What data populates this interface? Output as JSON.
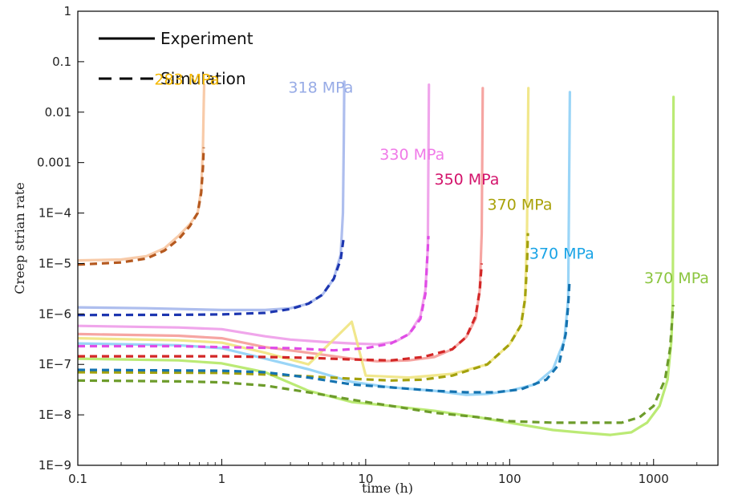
{
  "chart_data": {
    "type": "line",
    "title": "",
    "xlabel": "time (h)",
    "ylabel": "Creep strian rate",
    "xscale": "log",
    "yscale": "log",
    "xlim": [
      0.1,
      2800
    ],
    "ylim": [
      1e-09,
      1
    ],
    "grid": false,
    "legend_position": "top-left",
    "x_ticks": [
      {
        "value": 0.1,
        "label": "0.1"
      },
      {
        "value": 1,
        "label": "1"
      },
      {
        "value": 10,
        "label": "10"
      },
      {
        "value": 100,
        "label": "100"
      },
      {
        "value": 1000,
        "label": "1000"
      }
    ],
    "y_ticks": [
      {
        "value": 1,
        "label": "1"
      },
      {
        "value": 0.1,
        "label": "0.1"
      },
      {
        "value": 0.01,
        "label": "0.01"
      },
      {
        "value": 0.001,
        "label": "0.001"
      },
      {
        "value": 0.0001,
        "label": "1E−4"
      },
      {
        "value": 1e-05,
        "label": "1E−5"
      },
      {
        "value": 1e-06,
        "label": "1E−6"
      },
      {
        "value": 1e-07,
        "label": "1E−7"
      },
      {
        "value": 1e-08,
        "label": "1E−8"
      },
      {
        "value": 1e-09,
        "label": "1E−9"
      }
    ],
    "legend": [
      {
        "label": "Experiment",
        "style": "solid"
      },
      {
        "label": "Simulation",
        "style": "dashed"
      }
    ],
    "series": [
      {
        "label": "283 MPa",
        "exp_color": "#f7c5a0",
        "sim_color": "#b5591f",
        "label_color": "#f5b800",
        "label_at": [
          0.34,
          0.035
        ],
        "experiment": [
          [
            0.1,
            1.15e-05
          ],
          [
            0.2,
            1.2e-05
          ],
          [
            0.3,
            1.4e-05
          ],
          [
            0.4,
            2e-05
          ],
          [
            0.5,
            3.5e-05
          ],
          [
            0.6,
            6e-05
          ],
          [
            0.68,
            0.0001
          ],
          [
            0.72,
            0.0003
          ],
          [
            0.74,
            0.002
          ],
          [
            0.75,
            0.015
          ],
          [
            0.755,
            0.035
          ]
        ],
        "simulation": [
          [
            0.1,
            9.5e-06
          ],
          [
            0.2,
            1.05e-05
          ],
          [
            0.3,
            1.25e-05
          ],
          [
            0.4,
            1.8e-05
          ],
          [
            0.5,
            3e-05
          ],
          [
            0.6,
            5.5e-05
          ],
          [
            0.68,
            0.0001
          ],
          [
            0.72,
            0.00025
          ],
          [
            0.74,
            0.0008
          ],
          [
            0.75,
            0.002
          ]
        ]
      },
      {
        "label": "318 MPa",
        "exp_color": "#a5b7ec",
        "sim_color": "#1d36b0",
        "label_color": "#97abe6",
        "label_at": [
          2.9,
          0.0245
        ],
        "experiment": [
          [
            0.1,
            1.35e-06
          ],
          [
            0.3,
            1.3e-06
          ],
          [
            1,
            1.2e-06
          ],
          [
            2,
            1.2e-06
          ],
          [
            3,
            1.3e-06
          ],
          [
            4,
            1.6e-06
          ],
          [
            5,
            2.4e-06
          ],
          [
            6,
            5e-06
          ],
          [
            6.7,
            1.5e-05
          ],
          [
            6.95,
            0.0001
          ],
          [
            7.05,
            0.003
          ],
          [
            7.1,
            0.04
          ]
        ],
        "simulation": [
          [
            0.1,
            9.5e-07
          ],
          [
            0.5,
            9.6e-07
          ],
          [
            1,
            9.8e-07
          ],
          [
            2,
            1.05e-06
          ],
          [
            3,
            1.25e-06
          ],
          [
            4,
            1.6e-06
          ],
          [
            5,
            2.4e-06
          ],
          [
            6,
            5e-06
          ],
          [
            6.7,
            1.2e-05
          ],
          [
            7,
            3e-05
          ]
        ]
      },
      {
        "label": "330 MPa",
        "exp_color": "#ee9ce9",
        "sim_color": "#e04ce6",
        "label_color": "#f07ae8",
        "label_at": [
          12.5,
          0.00115
        ],
        "experiment": [
          [
            0.1,
            5.8e-07
          ],
          [
            0.5,
            5.4e-07
          ],
          [
            1,
            5e-07
          ],
          [
            2,
            3.6e-07
          ],
          [
            3,
            3.1e-07
          ],
          [
            5,
            2.8e-07
          ],
          [
            8,
            2.6e-07
          ],
          [
            12,
            2.5e-07
          ],
          [
            16,
            2.8e-07
          ],
          [
            20,
            4e-07
          ],
          [
            24,
            9e-07
          ],
          [
            26,
            3e-06
          ],
          [
            27,
            2e-05
          ],
          [
            27.5,
            0.035
          ]
        ],
        "simulation": [
          [
            0.1,
            2.3e-07
          ],
          [
            0.5,
            2.3e-07
          ],
          [
            1,
            2.2e-07
          ],
          [
            3,
            2.1e-07
          ],
          [
            6,
            1.9e-07
          ],
          [
            10,
            2.1e-07
          ],
          [
            15,
            2.6e-07
          ],
          [
            20,
            4e-07
          ],
          [
            24,
            8e-07
          ],
          [
            26,
            2.5e-06
          ],
          [
            27.3,
            3.5e-05
          ]
        ]
      },
      {
        "label": "350 MPa",
        "exp_color": "#f59b98",
        "sim_color": "#d32727",
        "label_color": "#d3136b",
        "label_at": [
          30,
          0.00037
        ],
        "experiment": [
          [
            0.1,
            4e-07
          ],
          [
            0.5,
            3.7e-07
          ],
          [
            1,
            3.3e-07
          ],
          [
            2,
            2.2e-07
          ],
          [
            4,
            1.7e-07
          ],
          [
            8,
            1.3e-07
          ],
          [
            12,
            1.15e-07
          ],
          [
            20,
            1.2e-07
          ],
          [
            30,
            1.4e-07
          ],
          [
            40,
            2e-07
          ],
          [
            50,
            3.5e-07
          ],
          [
            58,
            8e-07
          ],
          [
            62,
            3e-06
          ],
          [
            64,
            4e-05
          ],
          [
            65,
            0.03
          ]
        ],
        "simulation": [
          [
            0.1,
            1.45e-07
          ],
          [
            0.5,
            1.45e-07
          ],
          [
            1,
            1.45e-07
          ],
          [
            2,
            1.4e-07
          ],
          [
            4,
            1.35e-07
          ],
          [
            8,
            1.25e-07
          ],
          [
            15,
            1.2e-07
          ],
          [
            25,
            1.4e-07
          ],
          [
            40,
            2e-07
          ],
          [
            50,
            3.5e-07
          ],
          [
            58,
            9e-07
          ],
          [
            62,
            3e-06
          ],
          [
            64,
            1e-05
          ]
        ]
      },
      {
        "label": "370 MPa",
        "exp_color": "#f0e480",
        "sim_color": "#a3a10d",
        "label_color": "#a9a20a",
        "label_at": [
          70,
          0.000116
        ],
        "experiment": [
          [
            0.1,
            3.3e-07
          ],
          [
            0.5,
            3e-07
          ],
          [
            1,
            2.7e-07
          ],
          [
            2,
            1.7e-07
          ],
          [
            4,
            1e-07
          ],
          [
            8,
            7e-07
          ],
          [
            10,
            6e-08
          ],
          [
            20,
            5.5e-08
          ],
          [
            40,
            6.5e-08
          ],
          [
            70,
            1e-07
          ],
          [
            100,
            2.5e-07
          ],
          [
            120,
            6e-07
          ],
          [
            128,
            2e-06
          ],
          [
            132,
            5e-05
          ],
          [
            135,
            0.03
          ]
        ],
        "simulation": [
          [
            0.1,
            7e-08
          ],
          [
            1,
            6.8e-08
          ],
          [
            2,
            6.3e-08
          ],
          [
            4,
            5.8e-08
          ],
          [
            8,
            5.2e-08
          ],
          [
            15,
            4.8e-08
          ],
          [
            25,
            5e-08
          ],
          [
            40,
            6e-08
          ],
          [
            70,
            1e-07
          ],
          [
            100,
            2.5e-07
          ],
          [
            120,
            6e-07
          ],
          [
            128,
            2e-06
          ],
          [
            132,
            1e-05
          ],
          [
            134,
            4e-05
          ]
        ]
      },
      {
        "label": "370 MPa",
        "exp_color": "#8fd0f6",
        "sim_color": "#1573b0",
        "label_color": "#1aa4e6",
        "label_at": [
          137,
          1.25e-05
        ],
        "experiment": [
          [
            0.1,
            2.6e-07
          ],
          [
            0.5,
            2.4e-07
          ],
          [
            1,
            2.1e-07
          ],
          [
            2,
            1.3e-07
          ],
          [
            4,
            8e-08
          ],
          [
            8,
            4.5e-08
          ],
          [
            15,
            3.5e-08
          ],
          [
            30,
            3e-08
          ],
          [
            50,
            2.5e-08
          ],
          [
            70,
            2.6e-08
          ],
          [
            100,
            3e-08
          ],
          [
            150,
            4e-08
          ],
          [
            200,
            8e-08
          ],
          [
            240,
            3e-07
          ],
          [
            255,
            2e-06
          ],
          [
            262,
            0.025
          ]
        ],
        "simulation": [
          [
            0.1,
            7.8e-08
          ],
          [
            1,
            7.5e-08
          ],
          [
            2,
            7e-08
          ],
          [
            4,
            5.5e-08
          ],
          [
            8,
            4e-08
          ],
          [
            15,
            3.5e-08
          ],
          [
            30,
            3e-08
          ],
          [
            50,
            2.8e-08
          ],
          [
            80,
            2.8e-08
          ],
          [
            120,
            3.2e-08
          ],
          [
            180,
            5e-08
          ],
          [
            220,
            1e-07
          ],
          [
            245,
            4e-07
          ],
          [
            255,
            1.5e-06
          ],
          [
            260,
            4e-06
          ]
        ]
      },
      {
        "label": "370 MPa",
        "exp_color": "#b4e866",
        "sim_color": "#6d9c2b",
        "label_color": "#8bc53f",
        "label_at": [
          860,
          4.1e-06
        ],
        "experiment": [
          [
            0.1,
            1.3e-07
          ],
          [
            0.5,
            1.2e-07
          ],
          [
            1,
            1.05e-07
          ],
          [
            2,
            7e-08
          ],
          [
            4,
            3e-08
          ],
          [
            8,
            1.8e-08
          ],
          [
            15,
            1.5e-08
          ],
          [
            30,
            1.2e-08
          ],
          [
            60,
            9e-09
          ],
          [
            100,
            7e-09
          ],
          [
            200,
            5e-09
          ],
          [
            300,
            4.5e-09
          ],
          [
            500,
            4e-09
          ],
          [
            700,
            4.5e-09
          ],
          [
            900,
            7e-09
          ],
          [
            1100,
            1.5e-08
          ],
          [
            1250,
            5e-08
          ],
          [
            1330,
            3e-07
          ],
          [
            1360,
            2e-06
          ],
          [
            1375,
            0.02
          ]
        ],
        "simulation": [
          [
            0.1,
            4.8e-08
          ],
          [
            0.5,
            4.6e-08
          ],
          [
            1,
            4.4e-08
          ],
          [
            2,
            3.8e-08
          ],
          [
            4,
            2.8e-08
          ],
          [
            8,
            2e-08
          ],
          [
            15,
            1.5e-08
          ],
          [
            30,
            1.1e-08
          ],
          [
            60,
            9e-09
          ],
          [
            100,
            7.5e-09
          ],
          [
            200,
            7e-09
          ],
          [
            400,
            7e-09
          ],
          [
            600,
            7e-09
          ],
          [
            800,
            9e-09
          ],
          [
            1000,
            1.5e-08
          ],
          [
            1200,
            5e-08
          ],
          [
            1300,
            2e-07
          ],
          [
            1370,
            1.5e-06
          ]
        ]
      }
    ]
  }
}
